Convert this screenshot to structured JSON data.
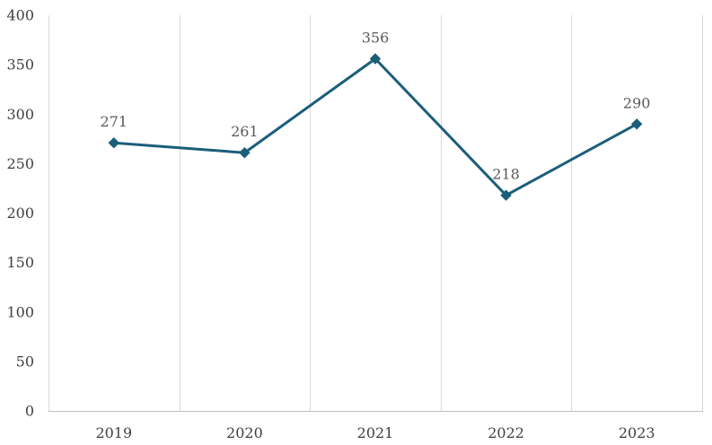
{
  "chart_data": {
    "type": "line",
    "title": "",
    "xlabel": "",
    "ylabel": "",
    "categories": [
      "2019",
      "2020",
      "2021",
      "2022",
      "2023"
    ],
    "series": [
      {
        "values": [
          271,
          261,
          356,
          218,
          290
        ],
        "marker": "diamond",
        "data_labels": [
          "271",
          "261",
          "356",
          "218",
          "290"
        ]
      }
    ],
    "ylim": [
      0,
      400
    ],
    "yticks": [
      "0",
      "50",
      "100",
      "150",
      "200",
      "250",
      "300",
      "350",
      "400"
    ],
    "grid": "vertical category separators",
    "legend": "none"
  },
  "colors": {
    "line": "#1b5e7a",
    "grid": "#d9d9d9",
    "axis": "#bfbfbf"
  }
}
